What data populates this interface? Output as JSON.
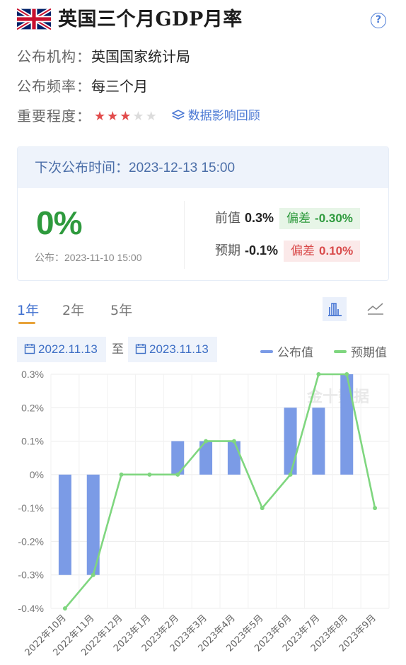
{
  "header": {
    "title": "英国三个月GDP月率",
    "help_glyph": "?"
  },
  "meta": {
    "agency_label": "公布机构：",
    "agency": "英国国家统计局",
    "freq_label": "公布频率：",
    "freq": "每三个月",
    "importance_label": "重要程度：",
    "importance_stars": 3,
    "importance_max": 5,
    "impact_link": "数据影响回顾"
  },
  "card": {
    "next_label": "下次公布时间：",
    "next_time": "2023-12-13 15:00",
    "actual": "0%",
    "pub_label": "公布：",
    "pub_time": "2023-11-10 15:00",
    "prev_label": "前值",
    "prev_value": "0.3%",
    "diff_label": "偏差",
    "diff_prev": "-0.30%",
    "fc_label": "预期",
    "fc_value": "-0.1%",
    "diff_fc": "0.10%"
  },
  "tabs": [
    {
      "label": "1年"
    },
    {
      "label": "2年"
    },
    {
      "label": "5年"
    }
  ],
  "range": {
    "from": "2022.11.13",
    "to_label": "至",
    "to": "2023.11.13"
  },
  "legend": {
    "actual": "公布值",
    "forecast": "预期值"
  },
  "colors": {
    "bar": "#7b9be6",
    "line": "#7fd67f",
    "accent": "#3f6fcf"
  },
  "chart_data": {
    "type": "bar",
    "watermark": "金十数据",
    "categories": [
      "2022年10月",
      "2022年11月",
      "2022年12月",
      "2023年1月",
      "2023年2月",
      "2023年3月",
      "2023年4月",
      "2023年5月",
      "2023年6月",
      "2023年7月",
      "2023年8月",
      "2023年9月"
    ],
    "series": [
      {
        "name": "公布值",
        "type": "bar",
        "values": [
          -0.3,
          -0.3,
          0,
          0,
          0.1,
          0.1,
          0.1,
          0,
          0.2,
          0.2,
          0.3,
          null
        ]
      },
      {
        "name": "预期值",
        "type": "line",
        "values": [
          -0.4,
          -0.3,
          0,
          0,
          0,
          0.1,
          0.1,
          -0.1,
          0,
          0.3,
          0.3,
          -0.1
        ]
      }
    ],
    "yticks": [
      "0.3%",
      "0.2%",
      "0.1%",
      "0%",
      "-0.1%",
      "-0.2%",
      "-0.3%",
      "-0.4%"
    ],
    "ylim": [
      -0.4,
      0.3
    ],
    "grid": true,
    "legend_position": "top-right"
  }
}
